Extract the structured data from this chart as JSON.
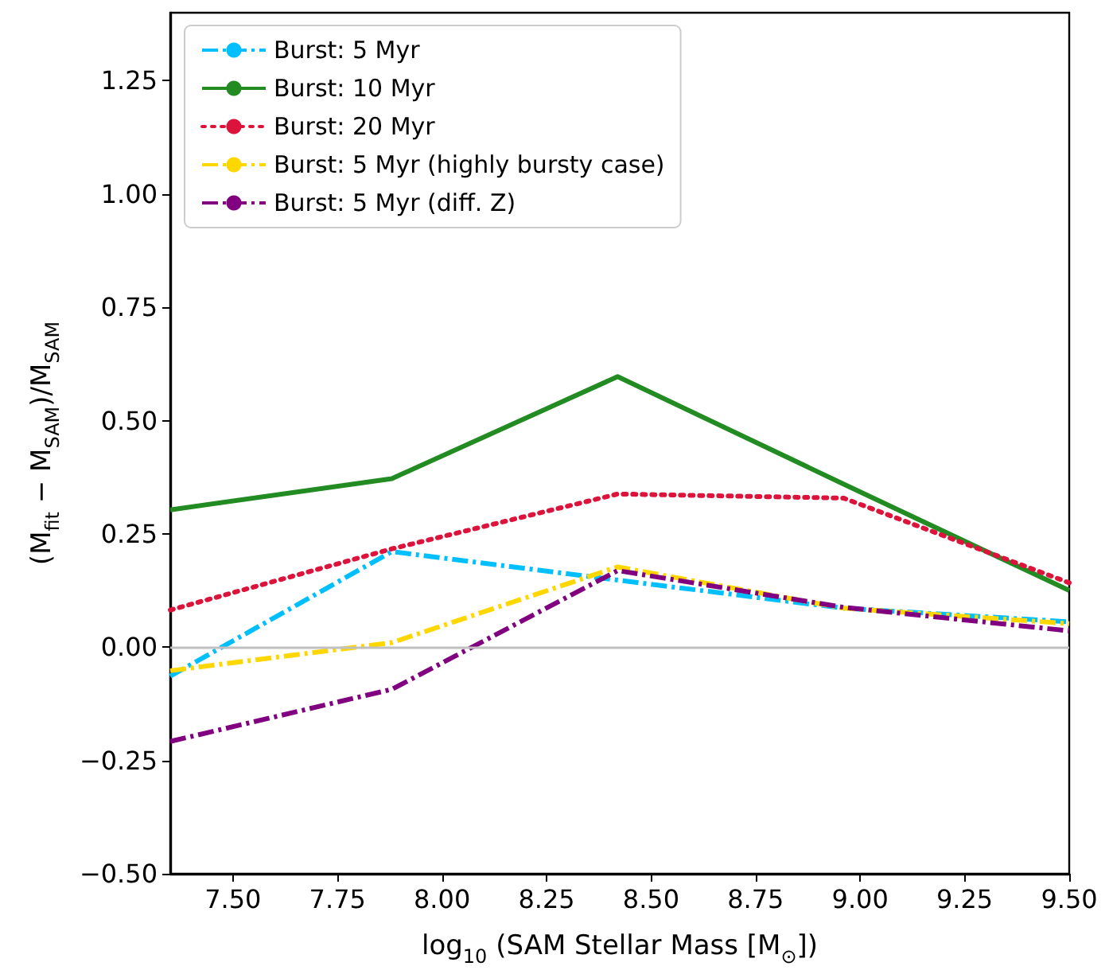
{
  "chart_data": {
    "type": "line",
    "xlabel": "log$_{10}$ (SAM Stellar Mass [M$_{⊙}$])",
    "ylabel": "(M$_{fit}$ − M$_{SAM}$)/M$_{SAM}$",
    "x": [
      7.35,
      7.88,
      8.42,
      8.96,
      9.5
    ],
    "series": [
      {
        "name": "Burst: 5 Myr",
        "color": "#00bfff",
        "line_style": "dashed",
        "values": [
          -0.064,
          0.211,
          0.148,
          0.086,
          0.056
        ]
      },
      {
        "name": "Burst: 10 Myr",
        "color": "#228b22",
        "line_style": "solid",
        "values": [
          0.303,
          0.372,
          0.597,
          0.36,
          0.125
        ]
      },
      {
        "name": "Burst: 20 Myr",
        "color": "#dc143c",
        "line_style": "dotted",
        "values": [
          0.082,
          0.217,
          0.338,
          0.329,
          0.142
        ]
      },
      {
        "name": "Burst: 5 Myr (highly bursty case)",
        "color": "#ffd700",
        "line_style": "dashed",
        "values": [
          -0.052,
          0.01,
          0.177,
          0.086,
          0.052
        ]
      },
      {
        "name": "Burst: 5 Myr (diff. Z)",
        "color": "#800080",
        "line_style": "dashed",
        "values": [
          -0.208,
          -0.093,
          0.169,
          0.088,
          0.036
        ]
      }
    ],
    "xlim": [
      7.35,
      9.5
    ],
    "ylim": [
      -0.5,
      1.4
    ],
    "xticks": [
      {
        "value": 7.5,
        "label": "7.50"
      },
      {
        "value": 7.75,
        "label": "7.75"
      },
      {
        "value": 8,
        "label": "8.00"
      },
      {
        "value": 8.25,
        "label": "8.25"
      },
      {
        "value": 8.5,
        "label": "8.50"
      },
      {
        "value": 8.75,
        "label": "8.75"
      },
      {
        "value": 9,
        "label": "9.00"
      },
      {
        "value": 9.25,
        "label": "9.25"
      },
      {
        "value": 9.5,
        "label": "9.50"
      }
    ],
    "yticks": [
      {
        "value": -0.5,
        "label": "−0.50"
      },
      {
        "value": -0.25,
        "label": "−0.25"
      },
      {
        "value": 0,
        "label": "0.00"
      },
      {
        "value": 0.25,
        "label": "0.25"
      },
      {
        "value": 0.5,
        "label": "0.50"
      },
      {
        "value": 0.75,
        "label": "0.75"
      },
      {
        "value": 1,
        "label": "1.00"
      },
      {
        "value": 1.25,
        "label": "1.25"
      }
    ],
    "ref_lines": [
      {
        "axis": "y",
        "value": 0,
        "color": "#c0c0c0"
      }
    ],
    "legend": "top left",
    "grid": false,
    "marker": "none"
  }
}
